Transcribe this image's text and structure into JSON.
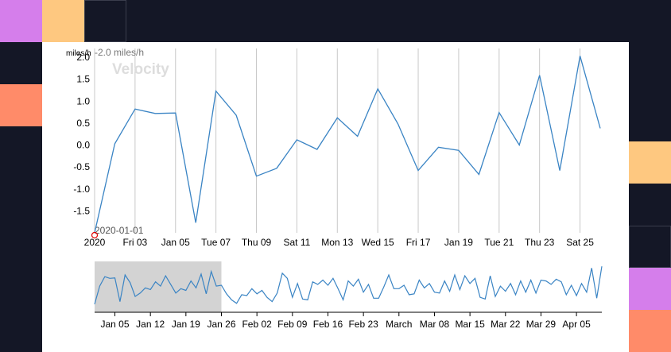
{
  "theme": {
    "background": "#141726",
    "tile_colors": [
      "#d57eeb",
      "#fec880",
      "#ff8b69",
      "#141726"
    ],
    "line_color": "#3a84c4",
    "brush_fill": "#d3d3d3",
    "crosshair_color": "#e00000"
  },
  "chart_data": {
    "type": "line",
    "title": "Velocity",
    "unit_label": "miles/h",
    "readout": {
      "value_text": "-2.0 miles/h",
      "date_text": "2020-01-01"
    },
    "main": {
      "x": [
        "2020-01-01",
        "2020-01-02",
        "2020-01-03",
        "2020-01-04",
        "2020-01-05",
        "2020-01-06",
        "2020-01-07",
        "2020-01-08",
        "2020-01-09",
        "2020-01-10",
        "2020-01-11",
        "2020-01-12",
        "2020-01-13",
        "2020-01-14",
        "2020-01-15",
        "2020-01-16",
        "2020-01-17",
        "2020-01-18",
        "2020-01-19",
        "2020-01-20",
        "2020-01-21",
        "2020-01-22",
        "2020-01-23",
        "2020-01-24",
        "2020-01-25",
        "2020-01-26"
      ],
      "y": [
        -2.0,
        0.03,
        0.82,
        0.72,
        0.73,
        -1.77,
        1.23,
        0.68,
        -0.71,
        -0.53,
        0.12,
        -0.1,
        0.62,
        0.2,
        1.28,
        0.48,
        -0.58,
        -0.05,
        -0.12,
        -0.67,
        0.74,
        0.0,
        1.59,
        -0.58,
        2.03,
        0.38
      ],
      "x_ticks": [
        "2020",
        "Fri 03",
        "Jan 05",
        "Tue 07",
        "Thu 09",
        "Sat 11",
        "Mon 13",
        "Wed 15",
        "Fri 17",
        "Jan 19",
        "Tue 21",
        "Thu 23",
        "Sat 25"
      ],
      "y_ticks": [
        "2.0",
        "1.5",
        "1.0",
        "0.5",
        "0.0",
        "-0.5",
        "-1.0",
        "-1.5"
      ],
      "ylim": [
        -2.0,
        2.2
      ],
      "grid": "vertical"
    },
    "overview": {
      "x_start": "2020-01-01",
      "x_end": "2020-04-10",
      "y": [
        -1.8,
        0.3,
        1.4,
        1.2,
        1.25,
        -1.5,
        1.6,
        0.7,
        -0.9,
        -0.5,
        0.1,
        -0.1,
        0.8,
        0.3,
        1.5,
        0.5,
        -0.5,
        0.0,
        -0.2,
        0.9,
        0.1,
        1.7,
        -0.6,
        2.0,
        0.3,
        0.4,
        -0.6,
        -1.3,
        -1.7,
        -0.7,
        -0.8,
        0.0,
        -0.6,
        -0.2,
        -1.0,
        -1.5,
        -0.5,
        1.8,
        1.2,
        -1.0,
        0.6,
        -1.2,
        -1.3,
        0.8,
        0.5,
        1.0,
        0.4,
        1.2,
        0.0,
        -1.3,
        0.9,
        0.3,
        1.1,
        -0.4,
        0.5,
        -1.1,
        -1.1,
        0.2,
        1.6,
        0.0,
        0.0,
        0.4,
        -0.7,
        -0.6,
        1.0,
        0.1,
        0.6,
        -0.4,
        -0.5,
        0.9,
        -0.3,
        1.6,
        -0.1,
        1.5,
        0.6,
        1.2,
        -1.0,
        -1.2,
        1.5,
        -0.9,
        0.3,
        -0.3,
        0.6,
        -0.7,
        0.9,
        -0.4,
        1.0,
        -0.5,
        1.0,
        0.9,
        0.5,
        1.1,
        0.8,
        -0.7,
        0.4,
        -0.8,
        0.6,
        -0.4,
        2.4,
        -1.1,
        2.6
      ],
      "x_ticks": [
        "Jan 05",
        "Jan 12",
        "Jan 19",
        "Jan 26",
        "Feb 02",
        "Feb 09",
        "Feb 16",
        "Feb 23",
        "March",
        "Mar 08",
        "Mar 15",
        "Mar 22",
        "Mar 29",
        "Apr 05"
      ],
      "brush": {
        "start": "2020-01-01",
        "end": "2020-01-26"
      }
    }
  }
}
